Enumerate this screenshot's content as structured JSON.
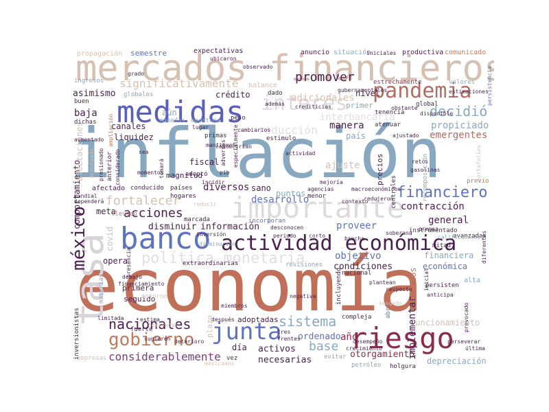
{
  "words": [
    {
      "text": "economía",
      "color": "#c07058",
      "vertical": false
    },
    {
      "text": "inflación",
      "color": "#88a8bf",
      "vertical": false
    },
    {
      "text": "mercados financieros",
      "color": "#d6c0b1",
      "vertical": false
    },
    {
      "text": "medidas",
      "color": "#5a5fb8",
      "vertical": false
    },
    {
      "text": "banco",
      "color": "#5f73bd",
      "vertical": false
    },
    {
      "text": "actividad económica",
      "color": "#4a1e4e",
      "vertical": false
    },
    {
      "text": "tasa",
      "color": "#d8d2d9",
      "vertical": true
    },
    {
      "text": "riesgo",
      "color": "#8a2c4a",
      "vertical": false
    },
    {
      "text": "importante",
      "color": "#dfd8dd",
      "vertical": false
    },
    {
      "text": "pandemia",
      "color": "#b06d63",
      "vertical": false
    },
    {
      "text": "junta",
      "color": "#5f73bd",
      "vertical": false
    },
    {
      "text": "gobierno",
      "color": "#c07a5d",
      "vertical": false
    },
    {
      "text": "méxico",
      "color": "#4a1e4e",
      "vertical": true
    },
    {
      "text": "interés",
      "color": "#dfd8dd",
      "vertical": false
    },
    {
      "text": "política monetaria",
      "color": "#e3dee2",
      "vertical": false
    },
    {
      "text": "financiero",
      "color": "#5f73bd",
      "vertical": false
    },
    {
      "text": "nacionales",
      "color": "#4a1e4e",
      "vertical": false
    },
    {
      "text": "considerablemente",
      "color": "#7a3e78",
      "vertical": false
    },
    {
      "text": "fortalecer",
      "color": "#d6c0b1",
      "vertical": false
    },
    {
      "text": "acciones",
      "color": "#4a1e4e",
      "vertical": false
    },
    {
      "text": "decidió",
      "color": "#88a8bf",
      "vertical": false
    },
    {
      "text": "promover",
      "color": "#4a1e4e",
      "vertical": false
    },
    {
      "text": "significativamente",
      "color": "#d6c0b1",
      "vertical": false
    },
    {
      "text": "sistema",
      "color": "#88a8bf",
      "vertical": false
    },
    {
      "text": "base",
      "color": "#88a8bf",
      "vertical": false
    },
    {
      "text": "año",
      "color": "#8a2c4a",
      "vertical": false
    },
    {
      "text": "reducción",
      "color": "#e3dee2",
      "vertical": false
    },
    {
      "text": "interbancaria",
      "color": "#e3dee2",
      "vertical": false
    },
    {
      "text": "adicionales",
      "color": "#d6c0b1",
      "vertical": false
    },
    {
      "text": "propiciado",
      "color": "#88a8bf",
      "vertical": false
    },
    {
      "text": "emergentes",
      "color": "#b06d63",
      "vertical": false
    },
    {
      "text": "manera",
      "color": "#4a1e4e",
      "vertical": false
    },
    {
      "text": "país",
      "color": "#88a8bf",
      "vertical": false
    },
    {
      "text": "ajuste",
      "color": "#d6c0b1",
      "vertical": false
    },
    {
      "text": "desarrollo",
      "color": "#5f73bd",
      "vertical": false
    },
    {
      "text": "puntos",
      "color": "#88a8bf",
      "vertical": false
    },
    {
      "text": "diversos",
      "color": "#4a1e4e",
      "vertical": false
    },
    {
      "text": "sano",
      "color": "#4a1e4e",
      "vertical": false
    },
    {
      "text": "contracción",
      "color": "#4a1e4e",
      "vertical": false
    },
    {
      "text": "general",
      "color": "#4a1e4e",
      "vertical": false
    },
    {
      "text": "disminuir",
      "color": "#4a1e4e",
      "vertical": false
    },
    {
      "text": "información",
      "color": "#4a1e4e",
      "vertical": false
    },
    {
      "text": "proveer",
      "color": "#5f73bd",
      "vertical": false
    },
    {
      "text": "objetivo",
      "color": "#5f73bd",
      "vertical": false
    },
    {
      "text": "condiciones",
      "color": "#4a1e4e",
      "vertical": false
    },
    {
      "text": "ordenado",
      "color": "#5f73bd",
      "vertical": false
    },
    {
      "text": "activos",
      "color": "#4a1e4e",
      "vertical": false
    },
    {
      "text": "necesarias",
      "color": "#4a1e4e",
      "vertical": false
    },
    {
      "text": "otorgamiento",
      "color": "#8a2c4a",
      "vertical": false
    },
    {
      "text": "depreciación",
      "color": "#88a8bf",
      "vertical": false
    },
    {
      "text": "funcionamiento",
      "color": "#d6c0b1",
      "vertical": false
    },
    {
      "text": "implementar",
      "color": "#4a1e4e",
      "vertical": true
    },
    {
      "text": "comportamiento",
      "color": "#4a1e4e",
      "vertical": true
    },
    {
      "text": "covid",
      "color": "#d6c0b1",
      "vertical": true
    },
    {
      "text": "canales",
      "color": "#4a1e4e",
      "vertical": false
    },
    {
      "text": "liquidez",
      "color": "#4a1e4e",
      "vertical": false
    },
    {
      "text": "baja",
      "color": "#4a1e4e",
      "vertical": false
    },
    {
      "text": "aún",
      "color": "#88a8bf",
      "vertical": false
    },
    {
      "text": "crédito",
      "color": "#4a1e4e",
      "vertical": false
    },
    {
      "text": "asimismo",
      "color": "#4a1e4e",
      "vertical": false
    },
    {
      "text": "semestre",
      "color": "#5f73bd",
      "vertical": false
    },
    {
      "text": "nivel",
      "color": "#4a1e4e",
      "vertical": false
    },
    {
      "text": "primer",
      "color": "#88a8bf",
      "vertical": false
    },
    {
      "text": "fiscal",
      "color": "#4a1e4e",
      "vertical": false
    },
    {
      "text": "magnitud",
      "color": "#4a1e4e",
      "vertical": false
    },
    {
      "text": "meta",
      "color": "#4a1e4e",
      "vertical": false
    },
    {
      "text": "opera",
      "color": "#4a1e4e",
      "vertical": false
    },
    {
      "text": "primera",
      "color": "#4a1e4e",
      "vertical": false
    },
    {
      "text": "seguido",
      "color": "#4a1e4e",
      "vertical": false
    },
    {
      "text": "día",
      "color": "#4a1e4e",
      "vertical": false
    },
    {
      "text": "plazo",
      "color": "#d6c0b1",
      "vertical": true
    },
    {
      "text": "adoptadas",
      "color": "#4a1e4e",
      "vertical": false
    },
    {
      "text": "efectos",
      "color": "#c07a5d",
      "vertical": true
    },
    {
      "text": "precios",
      "color": "#4a1e4e",
      "vertical": true
    },
    {
      "text": "financiera",
      "color": "#88a8bf",
      "vertical": false
    },
    {
      "text": "económica",
      "color": "#5f73bd",
      "vertical": false
    },
    {
      "text": "expectativas",
      "color": "#4a1e4e",
      "vertical": false
    },
    {
      "text": "anuncio",
      "color": "#4a1e4e",
      "vertical": false
    },
    {
      "text": "situación",
      "color": "#88a8bf",
      "vertical": false
    },
    {
      "text": "productiva",
      "color": "#4a1e4e",
      "vertical": false
    },
    {
      "text": "comunicado",
      "color": "#c07a5d",
      "vertical": false
    },
    {
      "text": "propagación",
      "color": "#d6c0b1",
      "vertical": false
    },
    {
      "text": "estrechamente",
      "color": "#8a2c4a",
      "vertical": false
    },
    {
      "text": "ingresos",
      "color": "#88a8bf",
      "vertical": false
    },
    {
      "text": "balance",
      "color": "#d6c0b1",
      "vertical": false
    },
    {
      "text": "dado",
      "color": "#4a1e4e",
      "vertical": false
    },
    {
      "text": "global",
      "color": "#4a1e4e",
      "vertical": false
    },
    {
      "text": "tenencia",
      "color": "#4a1e4e",
      "vertical": false
    },
    {
      "text": "atenuar",
      "color": "#4a1e4e",
      "vertical": false
    },
    {
      "text": "ajustado",
      "color": "#4a1e4e",
      "vertical": false
    },
    {
      "text": "monedas",
      "color": "#88a8bf",
      "vertical": false
    },
    {
      "text": "oportuna",
      "color": "#88a8bf",
      "vertical": false
    },
    {
      "text": "peso",
      "color": "#4a1e4e",
      "vertical": false
    },
    {
      "text": "estimulo",
      "color": "#4a1e4e",
      "vertical": false
    },
    {
      "text": "primas",
      "color": "#4a1e4e",
      "vertical": false
    },
    {
      "text": "mantienen",
      "color": "#4a1e4e",
      "vertical": false
    },
    {
      "text": "actividad",
      "color": "#4a1e4e",
      "vertical": false
    },
    {
      "text": "retos",
      "color": "#4a1e4e",
      "vertical": false
    },
    {
      "text": "gasolinas",
      "color": "#4a1e4e",
      "vertical": false
    },
    {
      "text": "recomposición",
      "color": "#88a8bf",
      "vertical": true
    },
    {
      "text": "adoptó",
      "color": "#4a1e4e",
      "vertical": false
    },
    {
      "text": "pib",
      "color": "#4a1e4e",
      "vertical": false
    },
    {
      "text": "afectado",
      "color": "#4a1e4e",
      "vertical": false
    },
    {
      "text": "conducido",
      "color": "#4a1e4e",
      "vertical": false
    },
    {
      "text": "países",
      "color": "#4a1e4e",
      "vertical": false
    },
    {
      "text": "hogares",
      "color": "#4a1e4e",
      "vertical": false
    },
    {
      "text": "llevado",
      "color": "#c07a5d",
      "vertical": false
    },
    {
      "text": "marcada",
      "color": "#4a1e4e",
      "vertical": false
    },
    {
      "text": "incorporan",
      "color": "#5f73bd",
      "vertical": false
    },
    {
      "text": "avanzadas",
      "color": "#4a1e4e",
      "vertical": false
    },
    {
      "text": "mitad",
      "color": "#4a1e4e",
      "vertical": false
    },
    {
      "text": "instrumentado",
      "color": "#4a1e4e",
      "vertical": false
    },
    {
      "text": "revisiones",
      "color": "#88a8bf",
      "vertical": false
    },
    {
      "text": "extraordinarias",
      "color": "#4a1e4e",
      "vertical": false
    },
    {
      "text": "abril",
      "color": "#5f73bd",
      "vertical": true
    },
    {
      "text": "incluyendo",
      "color": "#4a1e4e",
      "vertical": true
    },
    {
      "text": "entorno",
      "color": "#d6c0b1",
      "vertical": false
    },
    {
      "text": "nacional",
      "color": "#4a1e4e",
      "vertical": false
    },
    {
      "text": "fuerte",
      "color": "#4a1e4e",
      "vertical": false
    },
    {
      "text": "compleja",
      "color": "#4a1e4e",
      "vertical": false
    },
    {
      "text": "vez",
      "color": "#4a1e4e",
      "vertical": false
    },
    {
      "text": "tres",
      "color": "#4a1e4e",
      "vertical": false
    },
    {
      "text": "frentes",
      "color": "#4a1e4e",
      "vertical": false
    },
    {
      "text": "evitar",
      "color": "#88a8bf",
      "vertical": false
    },
    {
      "text": "petróleo",
      "color": "#88a8bf",
      "vertical": false
    },
    {
      "text": "holgura",
      "color": "#4a1e4e",
      "vertical": false
    },
    {
      "text": "empresas",
      "color": "#d6c0b1",
      "vertical": false
    },
    {
      "text": "mexicanos",
      "color": "#d6c0b1",
      "vertical": false
    },
    {
      "text": "inversionistas",
      "color": "#4a1e4e",
      "vertical": true
    },
    {
      "text": "materias",
      "color": "#88a8bf",
      "vertical": true
    },
    {
      "text": "afectaciones",
      "color": "#d6c0b1",
      "vertical": true
    },
    {
      "text": "persistencia",
      "color": "#5f73bd",
      "vertical": true
    },
    {
      "text": "alta",
      "color": "#88a8bf",
      "vertical": false
    },
    {
      "text": "persisten",
      "color": "#4a1e4e",
      "vertical": false
    },
    {
      "text": "anticipa",
      "color": "#4a1e4e",
      "vertical": false
    },
    {
      "text": "respecto",
      "color": "#4a1e4e",
      "vertical": false
    },
    {
      "text": "plantean",
      "color": "#4a1e4e",
      "vertical": false
    },
    {
      "text": "menor",
      "color": "#4a1e4e",
      "vertical": false
    },
    {
      "text": "contexto",
      "color": "#4a1e4e",
      "vertical": false
    },
    {
      "text": "agencias",
      "color": "#4a1e4e",
      "vertical": false
    },
    {
      "text": "desconocen",
      "color": "#4a1e4e",
      "vertical": false
    },
    {
      "text": "reducir",
      "color": "#d6c0b1",
      "vertical": false
    },
    {
      "text": "disminución",
      "color": "#88a8bf",
      "vertical": false
    },
    {
      "text": "inversión",
      "color": "#4a1e4e",
      "vertical": false
    },
    {
      "text": "periodo",
      "color": "#4a1e4e",
      "vertical": false
    },
    {
      "text": "corto",
      "color": "#4a1e4e",
      "vertical": false
    },
    {
      "text": "brecha",
      "color": "#4a1e4e",
      "vertical": false
    },
    {
      "text": "soberana",
      "color": "#4a1e4e",
      "vertical": false
    },
    {
      "text": "prensa",
      "color": "#4a1e4e",
      "vertical": false
    },
    {
      "text": "calificaciones",
      "color": "#88a8bf",
      "vertical": false
    },
    {
      "text": "diferentes",
      "color": "#4a1e4e",
      "vertical": true
    },
    {
      "text": "negativa",
      "color": "#4a1e4e",
      "vertical": false
    },
    {
      "text": "sesgado",
      "color": "#d6c0b1",
      "vertical": false
    },
    {
      "text": "debajo",
      "color": "#4a1e4e",
      "vertical": false
    },
    {
      "text": "presencia",
      "color": "#4a1e4e",
      "vertical": true
    },
    {
      "text": "limitada",
      "color": "#4a1e4e",
      "vertical": false
    },
    {
      "text": "deterioro",
      "color": "#4a1e4e",
      "vertical": false
    },
    {
      "text": "estima",
      "color": "#4a1e4e",
      "vertical": false
    },
    {
      "text": "después",
      "color": "#4a1e4e",
      "vertical": false
    },
    {
      "text": "miembros",
      "color": "#4a1e4e",
      "vertical": false
    },
    {
      "text": "derivadas",
      "color": "#d6c0b1",
      "vertical": false
    },
    {
      "text": "sugieren",
      "color": "#4a1e4e",
      "vertical": false
    },
    {
      "text": "última",
      "color": "#4a1e4e",
      "vertical": false
    },
    {
      "text": "perseverar",
      "color": "#4a1e4e",
      "vertical": false
    },
    {
      "text": "desempeño",
      "color": "#4a1e4e",
      "vertical": false
    },
    {
      "text": "crecimiento",
      "color": "#4a1e4e",
      "vertical": false
    },
    {
      "text": "valores",
      "color": "#88a8bf",
      "vertical": false
    },
    {
      "text": "estimaciones",
      "color": "#4a1e4e",
      "vertical": false
    },
    {
      "text": "previo",
      "color": "#c07a5d",
      "vertical": false
    },
    {
      "text": "centrales",
      "color": "#4a1e4e",
      "vertical": true
    },
    {
      "text": "ubicaron",
      "color": "#4a1e4e",
      "vertical": false
    },
    {
      "text": "observado",
      "color": "#4a1e4e",
      "vertical": false
    },
    {
      "text": "grado",
      "color": "#4a1e4e",
      "vertical": false
    },
    {
      "text": "globales",
      "color": "#88a8bf",
      "vertical": false
    },
    {
      "text": "buen",
      "color": "#4a1e4e",
      "vertical": false
    },
    {
      "text": "dichas",
      "color": "#4a1e4e",
      "vertical": false
    },
    {
      "text": "aumentado",
      "color": "#4a1e4e",
      "vertical": false
    },
    {
      "text": "ampliación",
      "color": "#c07a5d",
      "vertical": true
    },
    {
      "text": "anterior",
      "color": "#4a1e4e",
      "vertical": true
    },
    {
      "text": "considerado",
      "color": "#4a1e4e",
      "vertical": true
    },
    {
      "text": "presionado",
      "color": "#4a1e4e",
      "vertical": true
    },
    {
      "text": "acentuado",
      "color": "#d6c0b1",
      "vertical": true
    },
    {
      "text": "incidir",
      "color": "#4a1e4e",
      "vertical": false
    },
    {
      "text": "lugar",
      "color": "#4a1e4e",
      "vertical": false
    },
    {
      "text": "conducirían",
      "color": "#4a1e4e",
      "vertical": false
    },
    {
      "text": "cambiarios",
      "color": "#4a1e4e",
      "vertical": false
    },
    {
      "text": "adversos",
      "color": "#4a1e4e",
      "vertical": true
    },
    {
      "text": "especialmente",
      "color": "#4a1e4e",
      "vertical": true
    },
    {
      "text": "gubernamentales",
      "color": "#4a1e4e",
      "vertical": false
    },
    {
      "text": "crediticias",
      "color": "#4a1e4e",
      "vertical": false
    },
    {
      "text": "disponible",
      "color": "#4a1e4e",
      "vertical": false
    },
    {
      "text": "obstante",
      "color": "#4a1e4e",
      "vertical": false
    },
    {
      "text": "redujeron",
      "color": "#4a1e4e",
      "vertical": false
    },
    {
      "text": "macroeconómicos",
      "color": "#4a1e4e",
      "vertical": false
    },
    {
      "text": "mejoría",
      "color": "#4a1e4e",
      "vertical": false
    },
    {
      "text": "además",
      "color": "#4a1e4e",
      "vertical": false
    },
    {
      "text": "mundial",
      "color": "#4a1e4e",
      "vertical": false
    },
    {
      "text": "inicial",
      "color": "#4a1e4e",
      "vertical": false
    },
    {
      "text": "provocado",
      "color": "#4a1e4e",
      "vertical": true
    },
    {
      "text": "portafolios",
      "color": "#d6c0b1",
      "vertical": true
    },
    {
      "text": "financiamiento",
      "color": "#4a1e4e",
      "vertical": true
    },
    {
      "text": "sea",
      "color": "#4a1e4e",
      "vertical": false
    },
    {
      "text": "tomará",
      "color": "#4a1e4e",
      "vertical": false
    },
    {
      "text": "dependerá",
      "color": "#4a1e4e",
      "vertical": true
    },
    {
      "text": "iniciales",
      "color": "#4a1e4e",
      "vertical": false
    },
    {
      "text": "momentos",
      "color": "#4a1e4e",
      "vertical": false
    },
    {
      "text": "ligera",
      "color": "#4a1e4e",
      "vertical": false
    }
  ]
}
